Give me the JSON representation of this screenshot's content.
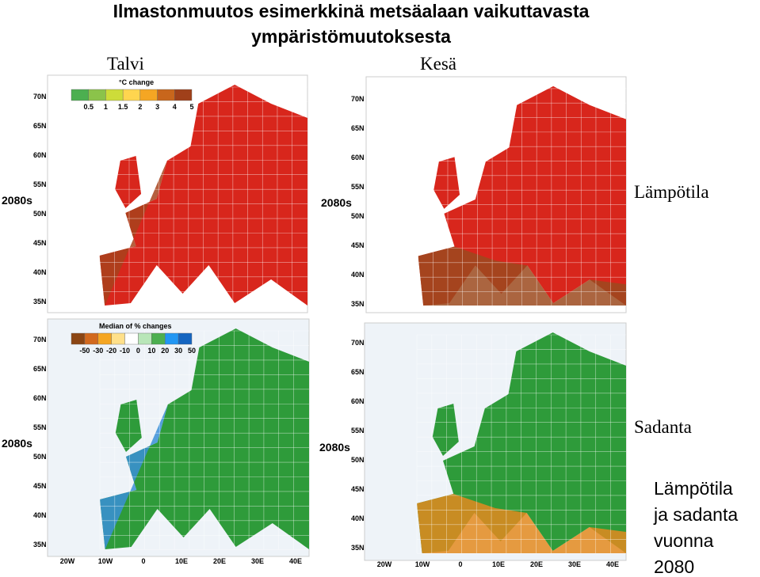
{
  "title": [
    "Ilmastonmuutos esimerkkinä metsäalaan vaikuttavasta",
    "ympäristömuutoksesta"
  ],
  "columns": [
    "Talvi",
    "Kesä"
  ],
  "rows": [
    "Lämpötila",
    "Sadanta"
  ],
  "caption": [
    "Lämpötila",
    "ja sadanta",
    "vuonna",
    "2080"
  ],
  "maps": [
    {
      "period": "2080s",
      "legend_title": "°C change",
      "legend_ticks": [
        "0.5",
        "1",
        "1.5",
        "2",
        "3",
        "4",
        "5"
      ],
      "lat_labels": [
        "70N",
        "65N",
        "60N",
        "55N",
        "50N",
        "45N",
        "40N",
        "35N"
      ]
    },
    {
      "period": "2080s",
      "lat_labels": [
        "70N",
        "65N",
        "60N",
        "55N",
        "50N",
        "45N",
        "40N",
        "35N"
      ]
    },
    {
      "period": "2080s",
      "legend_title": "Median of % changes",
      "legend_ticks": [
        "-50",
        "-30",
        "-20",
        "-10",
        "0",
        "10",
        "20",
        "30",
        "50"
      ],
      "lat_labels": [
        "70N",
        "65N",
        "60N",
        "55N",
        "50N",
        "45N",
        "40N",
        "35N"
      ],
      "lon_labels": [
        "20W",
        "10W",
        "0",
        "10E",
        "20E",
        "30E",
        "40E"
      ]
    },
    {
      "period": "2080s",
      "lat_labels": [
        "70N",
        "65N",
        "60N",
        "55N",
        "50N",
        "45N",
        "40N",
        "35N"
      ],
      "lon_labels": [
        "20W",
        "10W",
        "0",
        "10E",
        "20E",
        "30E",
        "40E"
      ]
    }
  ]
}
